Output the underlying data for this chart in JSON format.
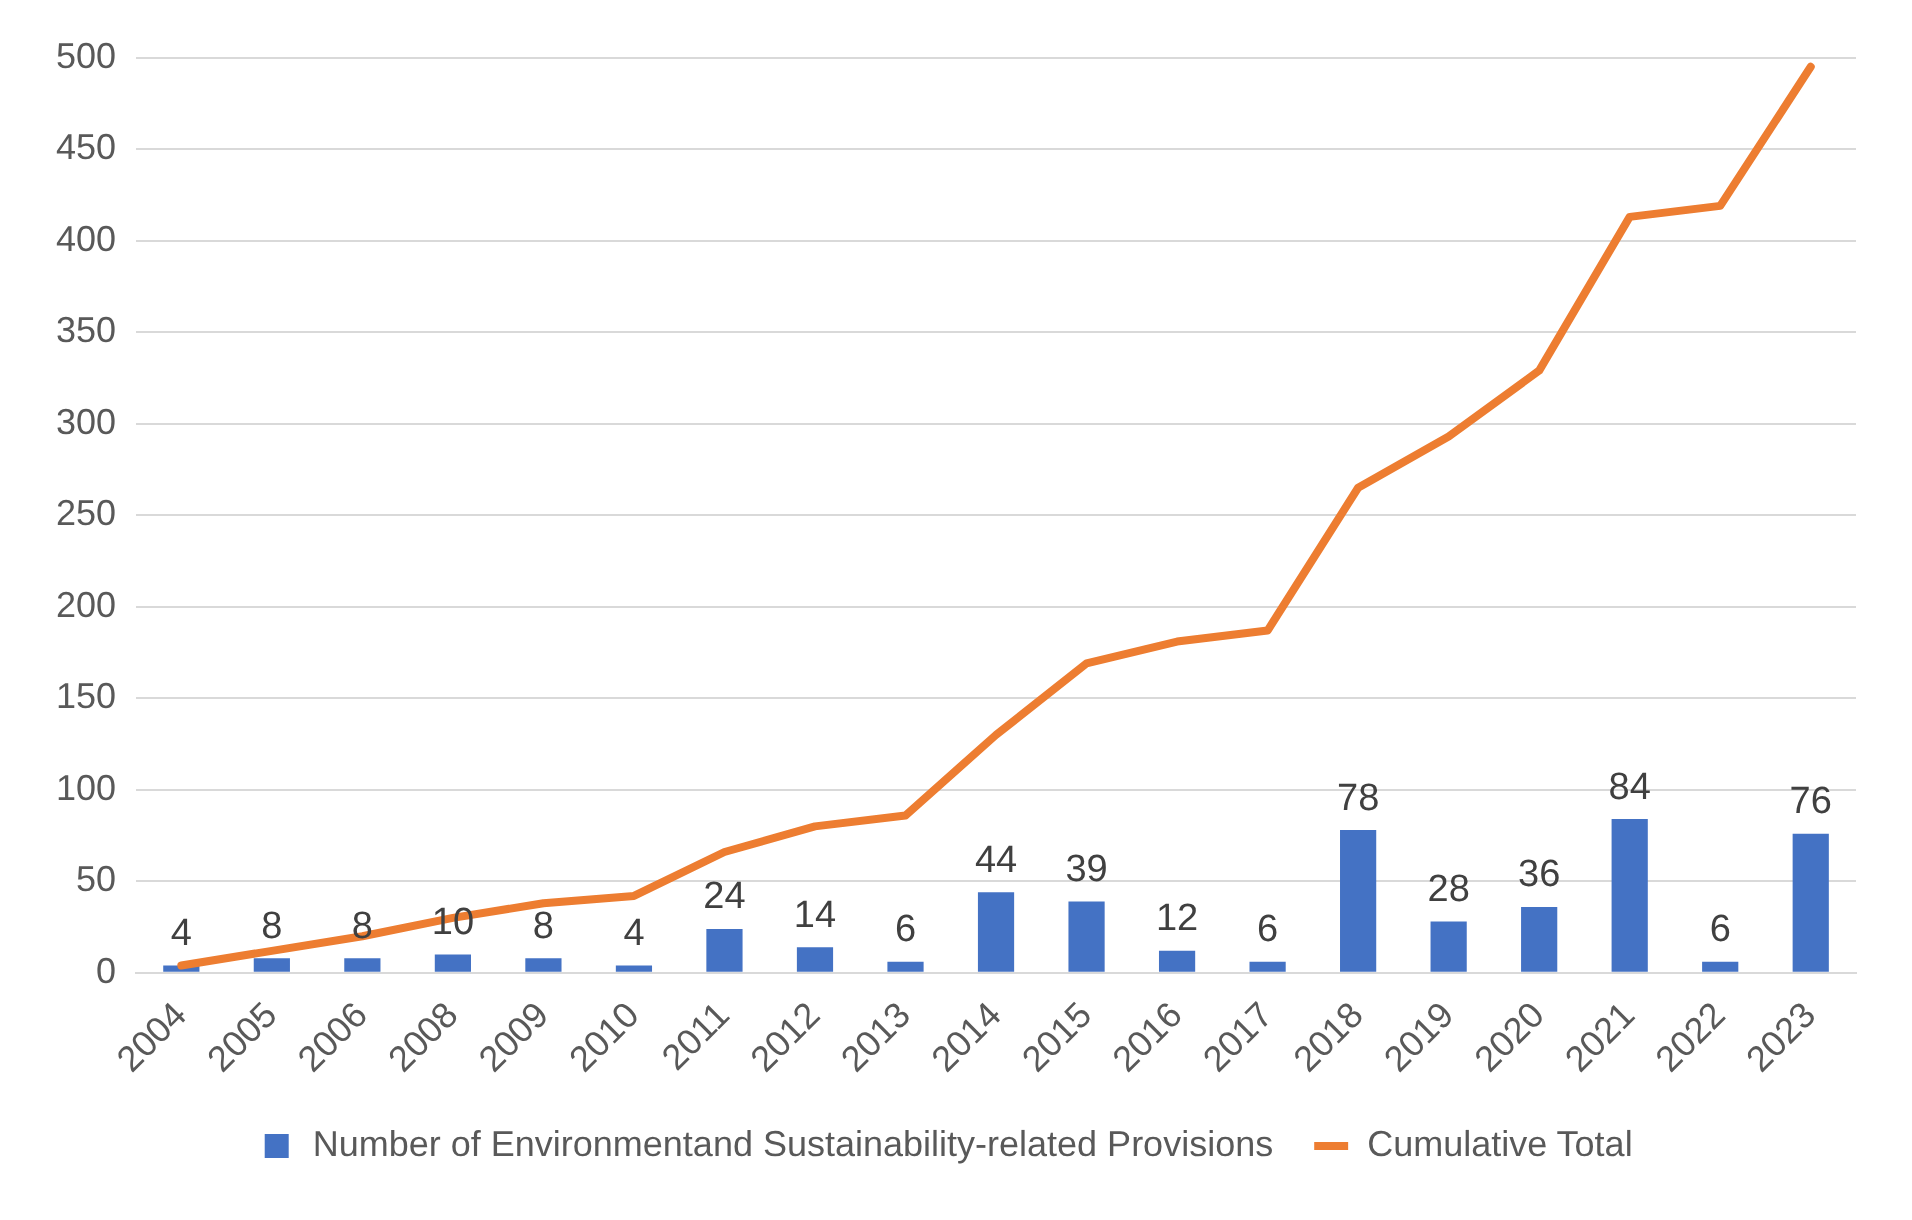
{
  "chart_data": {
    "type": "bar",
    "categories": [
      "2004",
      "2005",
      "2006",
      "2008",
      "2009",
      "2010",
      "2011",
      "2012",
      "2013",
      "2014",
      "2015",
      "2016",
      "2017",
      "2018",
      "2019",
      "2020",
      "2021",
      "2022",
      "2023"
    ],
    "series": [
      {
        "name": "Number of Environmentand Sustainability-related Provisions",
        "color": "#4472c4",
        "values": [
          4,
          8,
          8,
          10,
          8,
          4,
          24,
          14,
          6,
          44,
          39,
          12,
          6,
          78,
          28,
          36,
          84,
          6,
          76
        ],
        "value_labels": [
          "4",
          "8",
          "8",
          "10",
          "8",
          "4",
          "24",
          "14",
          "6",
          "44",
          "39",
          "12",
          "6",
          "78",
          "28",
          "36",
          "84",
          "6",
          "76"
        ]
      },
      {
        "name": "Cumulative Total",
        "type": "line",
        "color": "#ed7d31",
        "values": [
          4,
          12,
          20,
          30,
          38,
          42,
          66,
          80,
          86,
          130,
          169,
          181,
          187,
          265,
          293,
          329,
          413,
          419,
          495
        ]
      }
    ],
    "ylim": [
      0,
      500
    ],
    "yticks": [
      0,
      50,
      100,
      150,
      200,
      250,
      300,
      350,
      400,
      450,
      500
    ],
    "grid": "y",
    "legend": "bottom",
    "marker": "none"
  }
}
